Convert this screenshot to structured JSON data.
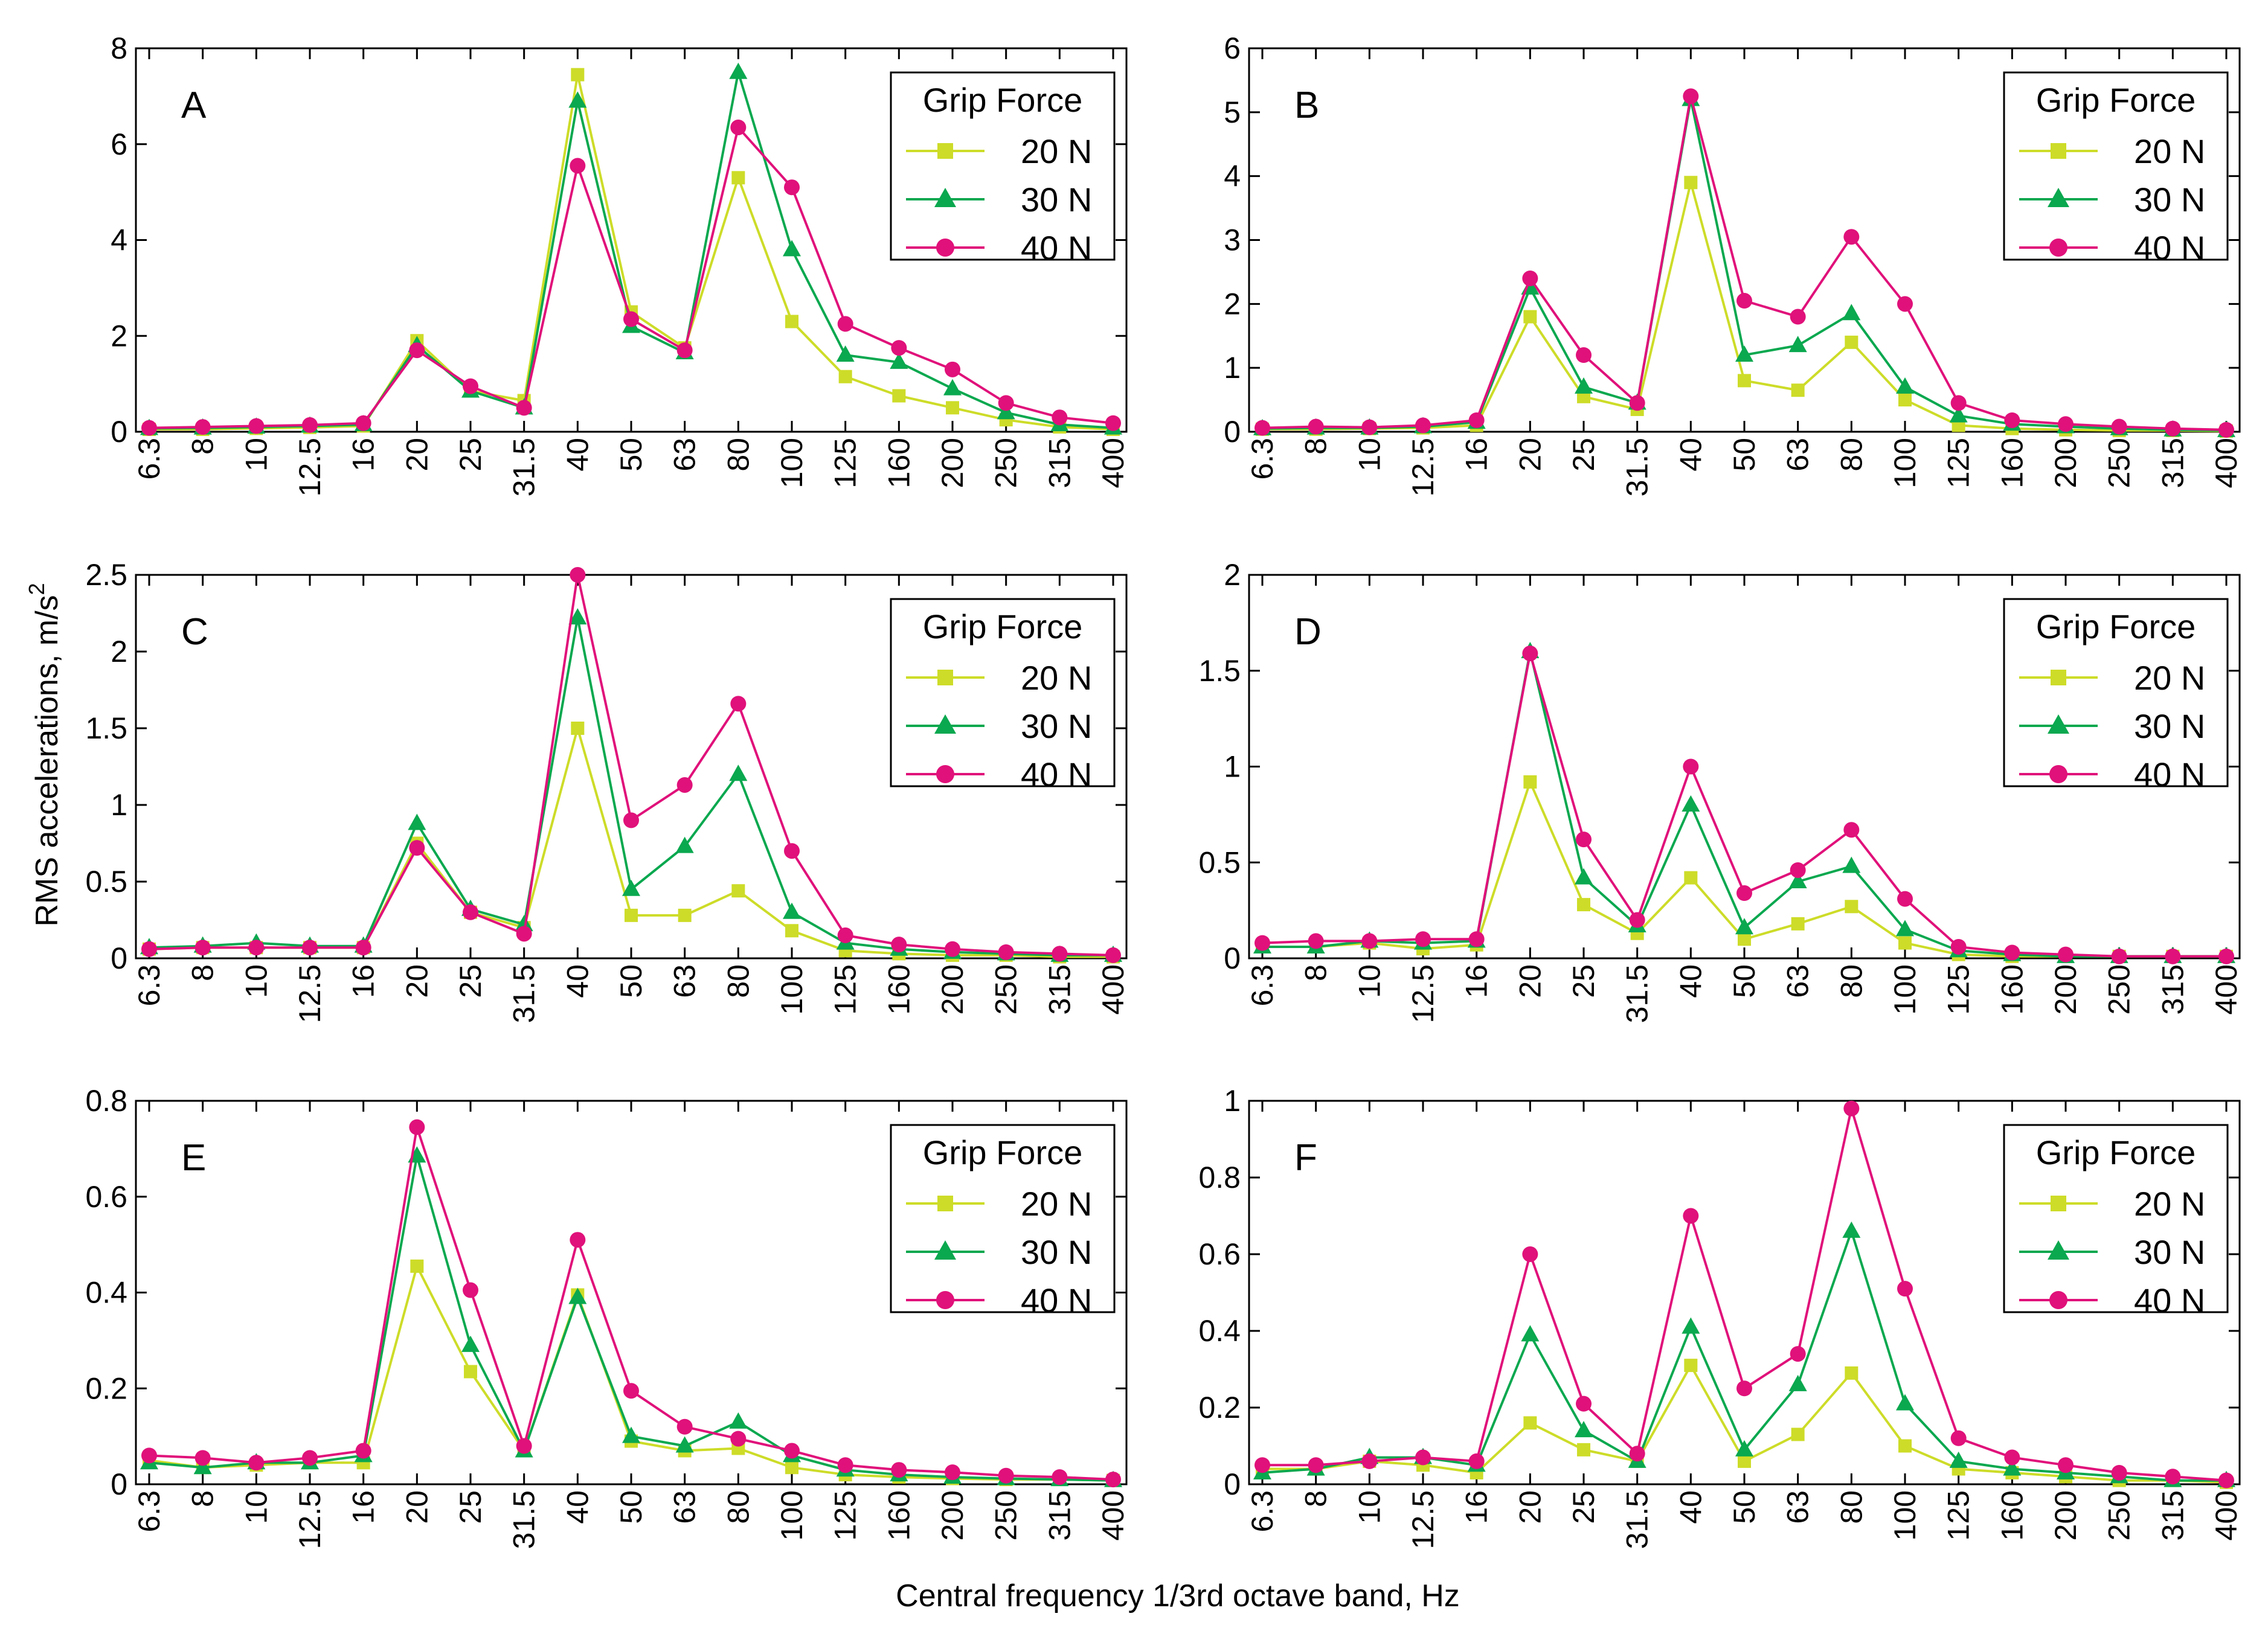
{
  "figure": {
    "ylabel": "RMS accelerations, m/s",
    "ylabel_superscript": "2",
    "xlabel": "Central frequency 1/3rd octave band, Hz",
    "legend_title": "Grip Force",
    "series_names": [
      "20 N",
      "30 N",
      "40 N"
    ],
    "series_colors": [
      "#cddc28",
      "#0aa84f",
      "#e0117a"
    ],
    "series_markers": [
      "square",
      "triangle",
      "circle"
    ]
  },
  "chart_data": [
    {
      "panel": "A",
      "type": "line",
      "categories": [
        "6.3",
        "8",
        "10",
        "12.5",
        "16",
        "20",
        "25",
        "31.5",
        "40",
        "50",
        "63",
        "80",
        "100",
        "125",
        "160",
        "200",
        "250",
        "315",
        "400"
      ],
      "ylim": [
        0,
        8
      ],
      "yticks": [
        "0",
        "2",
        "4",
        "6",
        "8"
      ],
      "ytick_values": [
        0,
        2,
        4,
        6,
        8
      ],
      "series": [
        {
          "name": "20 N",
          "values": [
            0.05,
            0.05,
            0.07,
            0.09,
            0.12,
            1.9,
            0.85,
            0.65,
            7.45,
            2.5,
            1.75,
            5.3,
            2.3,
            1.15,
            0.75,
            0.5,
            0.25,
            0.1,
            0.05
          ]
        },
        {
          "name": "30 N",
          "values": [
            0.07,
            0.08,
            0.1,
            0.12,
            0.15,
            1.8,
            0.85,
            0.5,
            6.9,
            2.2,
            1.65,
            7.5,
            3.8,
            1.6,
            1.45,
            0.9,
            0.4,
            0.15,
            0.08
          ]
        },
        {
          "name": "40 N",
          "values": [
            0.08,
            0.1,
            0.12,
            0.14,
            0.18,
            1.7,
            0.95,
            0.5,
            5.55,
            2.35,
            1.7,
            6.35,
            5.1,
            2.25,
            1.75,
            1.3,
            0.6,
            0.3,
            0.18
          ]
        }
      ]
    },
    {
      "panel": "B",
      "type": "line",
      "categories": [
        "6.3",
        "8",
        "10",
        "12.5",
        "16",
        "20",
        "25",
        "31.5",
        "40",
        "50",
        "63",
        "80",
        "100",
        "125",
        "160",
        "200",
        "250",
        "315",
        "400"
      ],
      "ylim": [
        0,
        6
      ],
      "yticks": [
        "0",
        "1",
        "2",
        "3",
        "4",
        "5",
        "6"
      ],
      "ytick_values": [
        0,
        1,
        2,
        3,
        4,
        5,
        6
      ],
      "series": [
        {
          "name": "20 N",
          "values": [
            0.04,
            0.04,
            0.05,
            0.06,
            0.1,
            1.8,
            0.55,
            0.35,
            3.9,
            0.8,
            0.65,
            1.4,
            0.5,
            0.1,
            0.05,
            0.03,
            0.02,
            0.02,
            0.01
          ]
        },
        {
          "name": "30 N",
          "values": [
            0.05,
            0.06,
            0.06,
            0.08,
            0.15,
            2.25,
            0.7,
            0.45,
            5.2,
            1.2,
            1.35,
            1.85,
            0.7,
            0.25,
            0.12,
            0.08,
            0.05,
            0.03,
            0.02
          ]
        },
        {
          "name": "40 N",
          "values": [
            0.06,
            0.08,
            0.07,
            0.1,
            0.18,
            2.4,
            1.2,
            0.45,
            5.25,
            2.05,
            1.8,
            3.05,
            2.0,
            0.45,
            0.18,
            0.12,
            0.08,
            0.05,
            0.03
          ]
        }
      ]
    },
    {
      "panel": "C",
      "type": "line",
      "categories": [
        "6.3",
        "8",
        "10",
        "12.5",
        "16",
        "20",
        "25",
        "31.5",
        "40",
        "50",
        "63",
        "80",
        "100",
        "125",
        "160",
        "200",
        "250",
        "315",
        "400"
      ],
      "ylim": [
        0,
        2.5
      ],
      "yticks": [
        "0",
        "0.5",
        "1",
        "1.5",
        "2",
        "2.5"
      ],
      "ytick_values": [
        0,
        0.5,
        1,
        1.5,
        2,
        2.5
      ],
      "series": [
        {
          "name": "20 N",
          "values": [
            0.06,
            0.07,
            0.07,
            0.07,
            0.07,
            0.75,
            0.3,
            0.2,
            1.5,
            0.28,
            0.28,
            0.44,
            0.18,
            0.05,
            0.03,
            0.02,
            0.02,
            0.01,
            0.01
          ]
        },
        {
          "name": "30 N",
          "values": [
            0.07,
            0.08,
            0.1,
            0.08,
            0.08,
            0.88,
            0.32,
            0.22,
            2.22,
            0.45,
            0.73,
            1.2,
            0.3,
            0.1,
            0.06,
            0.04,
            0.03,
            0.02,
            0.02
          ]
        },
        {
          "name": "40 N",
          "values": [
            0.06,
            0.07,
            0.07,
            0.07,
            0.07,
            0.72,
            0.3,
            0.16,
            2.5,
            0.9,
            1.13,
            1.66,
            0.7,
            0.15,
            0.09,
            0.06,
            0.04,
            0.03,
            0.02
          ]
        }
      ]
    },
    {
      "panel": "D",
      "type": "line",
      "categories": [
        "6.3",
        "8",
        "10",
        "12.5",
        "16",
        "20",
        "25",
        "31.5",
        "40",
        "50",
        "63",
        "80",
        "100",
        "125",
        "160",
        "200",
        "250",
        "315",
        "400"
      ],
      "ylim": [
        0,
        2
      ],
      "yticks": [
        "0",
        "0.5",
        "1",
        "1.5",
        "2"
      ],
      "ytick_values": [
        0,
        0.5,
        1,
        1.5,
        2
      ],
      "series": [
        {
          "name": "20 N",
          "values": [
            0.06,
            0.06,
            0.08,
            0.05,
            0.07,
            0.92,
            0.28,
            0.13,
            0.42,
            0.1,
            0.18,
            0.27,
            0.08,
            0.02,
            0.01,
            0.01,
            0.01,
            0.01,
            0.01
          ]
        },
        {
          "name": "30 N",
          "values": [
            0.06,
            0.06,
            0.09,
            0.08,
            0.09,
            1.6,
            0.42,
            0.17,
            0.8,
            0.16,
            0.4,
            0.48,
            0.15,
            0.04,
            0.02,
            0.01,
            0.01,
            0.01,
            0.01
          ]
        },
        {
          "name": "40 N",
          "values": [
            0.08,
            0.09,
            0.09,
            0.1,
            0.1,
            1.59,
            0.62,
            0.2,
            1.0,
            0.34,
            0.46,
            0.67,
            0.31,
            0.06,
            0.03,
            0.02,
            0.01,
            0.01,
            0.01
          ]
        }
      ]
    },
    {
      "panel": "E",
      "type": "line",
      "categories": [
        "6.3",
        "8",
        "10",
        "12.5",
        "16",
        "20",
        "25",
        "31.5",
        "40",
        "50",
        "63",
        "80",
        "100",
        "125",
        "160",
        "200",
        "250",
        "315",
        "400"
      ],
      "ylim": [
        0,
        0.8
      ],
      "yticks": [
        "0",
        "0.2",
        "0.4",
        "0.6",
        "0.8"
      ],
      "ytick_values": [
        0,
        0.2,
        0.4,
        0.6,
        0.8
      ],
      "series": [
        {
          "name": "20 N",
          "values": [
            0.05,
            0.035,
            0.04,
            0.045,
            0.045,
            0.455,
            0.235,
            0.07,
            0.395,
            0.09,
            0.07,
            0.075,
            0.035,
            0.02,
            0.015,
            0.012,
            0.01,
            0.01,
            0.008
          ]
        },
        {
          "name": "30 N",
          "values": [
            0.045,
            0.035,
            0.045,
            0.045,
            0.06,
            0.685,
            0.29,
            0.07,
            0.39,
            0.1,
            0.08,
            0.13,
            0.06,
            0.03,
            0.02,
            0.015,
            0.012,
            0.01,
            0.008
          ]
        },
        {
          "name": "40 N",
          "values": [
            0.06,
            0.055,
            0.045,
            0.055,
            0.07,
            0.745,
            0.405,
            0.08,
            0.51,
            0.195,
            0.12,
            0.095,
            0.07,
            0.04,
            0.03,
            0.025,
            0.018,
            0.015,
            0.01
          ]
        }
      ]
    },
    {
      "panel": "F",
      "type": "line",
      "categories": [
        "6.3",
        "8",
        "10",
        "12.5",
        "16",
        "20",
        "25",
        "31.5",
        "40",
        "50",
        "63",
        "80",
        "100",
        "125",
        "160",
        "200",
        "250",
        "315",
        "400"
      ],
      "ylim": [
        0,
        1
      ],
      "yticks": [
        "0",
        "0.2",
        "0.4",
        "0.6",
        "0.8",
        "1"
      ],
      "ytick_values": [
        0,
        0.2,
        0.4,
        0.6,
        0.8,
        1
      ],
      "series": [
        {
          "name": "20 N",
          "values": [
            0.04,
            0.04,
            0.06,
            0.05,
            0.03,
            0.16,
            0.09,
            0.06,
            0.31,
            0.06,
            0.13,
            0.29,
            0.1,
            0.04,
            0.03,
            0.02,
            0.01,
            0.01,
            0.005
          ]
        },
        {
          "name": "30 N",
          "values": [
            0.03,
            0.04,
            0.07,
            0.07,
            0.05,
            0.39,
            0.14,
            0.06,
            0.41,
            0.09,
            0.26,
            0.66,
            0.21,
            0.06,
            0.04,
            0.03,
            0.02,
            0.01,
            0.01
          ]
        },
        {
          "name": "40 N",
          "values": [
            0.05,
            0.05,
            0.06,
            0.07,
            0.06,
            0.6,
            0.21,
            0.08,
            0.7,
            0.25,
            0.34,
            0.98,
            0.51,
            0.12,
            0.07,
            0.05,
            0.03,
            0.02,
            0.01
          ]
        }
      ]
    }
  ]
}
